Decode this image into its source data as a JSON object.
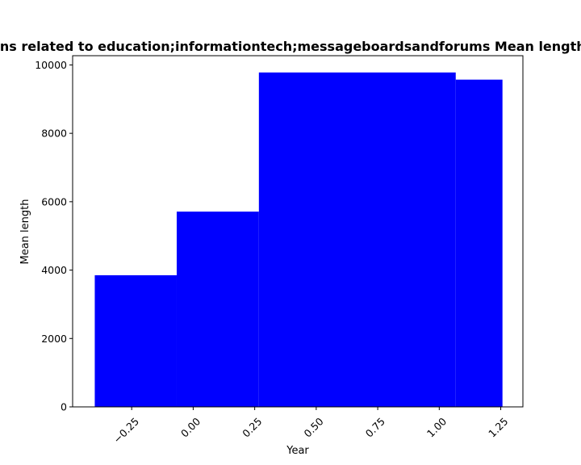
{
  "chart_data": {
    "type": "bar",
    "title": "Domains related to education;informationtech;messageboardsandforums Mean length in Year",
    "xlabel": "Year",
    "ylabel": "Mean length",
    "bars": [
      {
        "x_start": -0.4,
        "x_end": -0.067,
        "value": 3850
      },
      {
        "x_start": -0.067,
        "x_end": 0.267,
        "value": 5710
      },
      {
        "x_start": 0.267,
        "x_end": 1.067,
        "value": 9780
      },
      {
        "x_start": 1.067,
        "x_end": 1.257,
        "value": 9570
      }
    ],
    "xlim": [
      -0.49,
      1.34
    ],
    "ylim": [
      0,
      10270
    ],
    "x_ticks": [
      -0.25,
      0.0,
      0.25,
      0.5,
      0.75,
      1.0,
      1.25
    ],
    "x_tick_labels": [
      "−0.25",
      "0.00",
      "0.25",
      "0.50",
      "0.75",
      "1.00",
      "1.25"
    ],
    "y_ticks": [
      0,
      2000,
      4000,
      6000,
      8000,
      10000
    ],
    "y_tick_labels": [
      "0",
      "2000",
      "4000",
      "6000",
      "8000",
      "10000"
    ],
    "bar_color": "#0000ff",
    "grid": false
  }
}
